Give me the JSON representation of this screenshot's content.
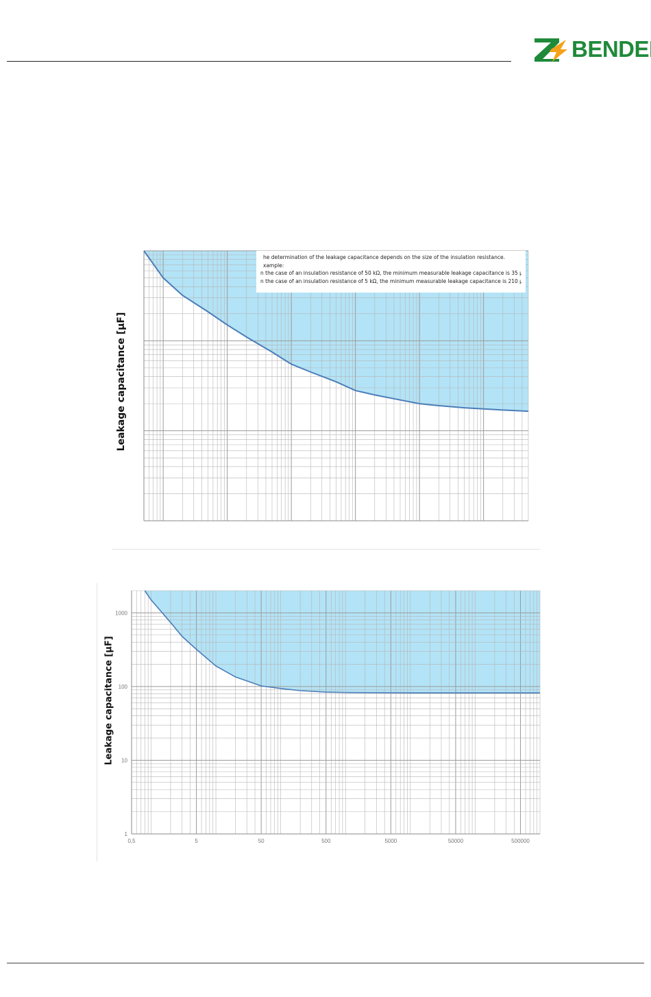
{
  "logo": {
    "name": "BENDER"
  },
  "colors": {
    "fill": "#b3e3f6",
    "curve": "#4a7db8",
    "grid": "#b5b5b5",
    "brand": "#1f8a3a",
    "logo_accent": "#f5a21a"
  },
  "chart1": {
    "ylabel": "Leakage capacitance [µF]",
    "notes": [
      "he determination of the leakage capacitance depends on the size of the insulation resistance.",
      "xample:",
      "n the case of an insulation resistance of 50 kΩ, the minimum measurable leakage capacitance is 35 µ",
      "n the case of an insulation resistance of 5 kΩ, the minimum measurable leakage capacitance is 210 µ"
    ]
  },
  "chart2": {
    "ylabel": "Leakage capacitance [µF]"
  },
  "chart_data": [
    {
      "type": "line",
      "xscale": "log",
      "yscale": "log",
      "grid": true,
      "legend": "none",
      "fill": "area above curve",
      "title": "",
      "xlabel": "",
      "ylabel": "Leakage capacitance [µF]",
      "xlim": [
        0.5,
        500000
      ],
      "ylim": [
        1,
        1000
      ],
      "series": [
        {
          "x": [
            0.5,
            1,
            2,
            5,
            10,
            20,
            50,
            100,
            200,
            500,
            1000,
            2000,
            5000,
            10000,
            20000,
            50000,
            100000,
            200000,
            500000
          ],
          "values": [
            1000,
            500,
            320,
            210,
            150,
            110,
            75,
            55,
            45,
            35,
            28,
            25,
            22,
            20,
            19,
            18,
            17.5,
            17,
            16.5
          ]
        }
      ]
    },
    {
      "type": "line",
      "xscale": "log",
      "yscale": "log",
      "grid": true,
      "legend": "none",
      "fill": "area above curve",
      "title": "",
      "xlabel": "",
      "ylabel": "Leakage capacitance [µF]",
      "xlim": [
        0.5,
        1000000
      ],
      "ylim": [
        1,
        2000
      ],
      "xticks": [
        "0,5",
        "5",
        "50",
        "500",
        "5000",
        "50000",
        "500000"
      ],
      "yticks": [
        "1",
        "10",
        "100",
        "1000"
      ],
      "series": [
        {
          "x": [
            0.8,
            1,
            2,
            3,
            5,
            10,
            20,
            50,
            100,
            200,
            500,
            1000,
            10000,
            100000,
            1000000
          ],
          "values": [
            2000,
            1500,
            740,
            480,
            320,
            190,
            135,
            102,
            94,
            88,
            84,
            83,
            82,
            82,
            82
          ]
        }
      ]
    }
  ]
}
